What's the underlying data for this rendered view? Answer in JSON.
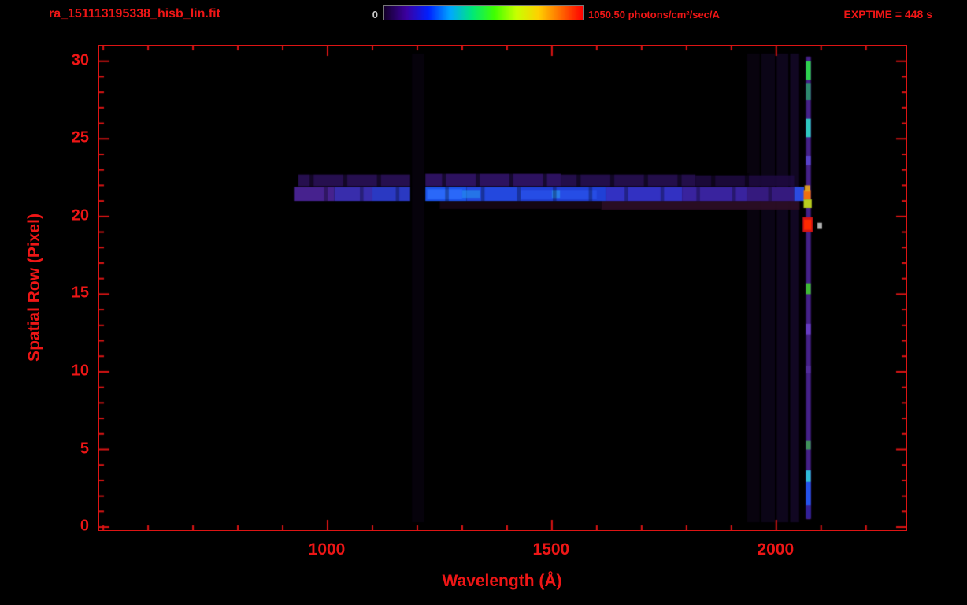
{
  "header": {
    "filename": "ra_151113195338_hisb_lin.fit",
    "exptime": "EXPTIME = 448 s",
    "colorbar": {
      "min_label": "0",
      "max_label": "1050.50 photons/cm²/sec/A",
      "min_value": 0,
      "max_value": 1050.5,
      "units": "photons/cm²/sec/A",
      "gradient": [
        "#14002a",
        "#3c00a0",
        "#0020ff",
        "#00a8ff",
        "#00e878",
        "#40ff00",
        "#c8ff00",
        "#ffd000",
        "#ff6a00",
        "#ff0000"
      ]
    }
  },
  "colors": {
    "background": "#000000",
    "axis_red": "#dd1414",
    "label_red": "#ee1616",
    "colorbar_zero_label": "#c8c8c8"
  },
  "chart_data": {
    "type": "heatmap",
    "title": "ra_151113195338_hisb_lin.fit",
    "xlabel": "Wavelength (Å)",
    "ylabel": "Spatial Row (Pixel)",
    "xlim": [
      491,
      2290
    ],
    "ylim": [
      -0.2,
      31.0
    ],
    "x_ticks": [
      1000,
      1500,
      2000
    ],
    "x_minor_step": 100,
    "y_ticks": [
      0,
      5,
      10,
      15,
      20,
      25,
      30
    ],
    "y_minor_step": 1,
    "grid": false,
    "legend": "none",
    "colorbar_range": [
      0,
      1050.5
    ],
    "features": {
      "source_trace": {
        "rows": [
          21.0,
          22.7
        ],
        "wavelength_range": [
          925,
          2063
        ],
        "absorption_gap_wavelength_range": [
          1184,
          1218
        ],
        "brightest_wavelength_range": [
          1218,
          1600
        ]
      },
      "emission_line_column": {
        "wavelength_center": 2071,
        "rows": [
          0.5,
          30.2
        ],
        "bright_knot_rows": [
          29.5,
          25.7,
          21.3,
          20.8,
          19.5,
          15.3,
          5.3,
          3.2,
          2.0
        ]
      },
      "red_hotspot": {
        "wavelength": 2070,
        "row": 19.5
      }
    },
    "heat_rects": [
      {
        "x": [
          1188,
          1216
        ],
        "row": [
          0.3,
          30.5
        ],
        "color": "#0b0414",
        "alpha": 0.55
      },
      {
        "x": [
          1935,
          1963
        ],
        "row": [
          0.3,
          30.5
        ],
        "color": "#0d0518",
        "alpha": 0.6
      },
      {
        "x": [
          1967,
          1997
        ],
        "row": [
          0.3,
          30.5
        ],
        "color": "#110722",
        "alpha": 0.65
      },
      {
        "x": [
          2001,
          2027
        ],
        "row": [
          0.3,
          30.5
        ],
        "color": "#140828",
        "alpha": 0.7
      },
      {
        "x": [
          2031,
          2051
        ],
        "row": [
          0.3,
          30.5
        ],
        "color": "#170a2e",
        "alpha": 0.75
      },
      {
        "x": [
          1610,
          2052
        ],
        "row": [
          20.45,
          21.0
        ],
        "color": "#2d0e26",
        "alpha": 0.9
      },
      {
        "x": [
          1250,
          1610
        ],
        "row": [
          20.5,
          21.0
        ],
        "color": "#190816",
        "alpha": 0.8
      },
      {
        "x": [
          935,
          1184
        ],
        "row": [
          21.95,
          22.7
        ],
        "color": "#2a1158",
        "alpha": 0.9
      },
      {
        "x": [
          1218,
          1520
        ],
        "row": [
          21.95,
          22.75
        ],
        "color": "#2f1364",
        "alpha": 0.95
      },
      {
        "x": [
          1520,
          1820
        ],
        "row": [
          21.95,
          22.7
        ],
        "color": "#270f52",
        "alpha": 0.9
      },
      {
        "x": [
          1820,
          2040
        ],
        "row": [
          21.95,
          22.65
        ],
        "color": "#1f0b42",
        "alpha": 0.85
      },
      {
        "x": [
          960,
          969
        ],
        "row": [
          21.9,
          22.8
        ],
        "color": "#000000",
        "alpha": 0.5
      },
      {
        "x": [
          1035,
          1044
        ],
        "row": [
          21.9,
          22.8
        ],
        "color": "#000000",
        "alpha": 0.5
      },
      {
        "x": [
          1110,
          1119
        ],
        "row": [
          21.9,
          22.8
        ],
        "color": "#000000",
        "alpha": 0.5
      },
      {
        "x": [
          1255,
          1264
        ],
        "row": [
          21.9,
          22.8
        ],
        "color": "#000000",
        "alpha": 0.5
      },
      {
        "x": [
          1330,
          1339
        ],
        "row": [
          21.9,
          22.8
        ],
        "color": "#000000",
        "alpha": 0.5
      },
      {
        "x": [
          1405,
          1414
        ],
        "row": [
          21.9,
          22.8
        ],
        "color": "#000000",
        "alpha": 0.5
      },
      {
        "x": [
          1480,
          1489
        ],
        "row": [
          21.9,
          22.8
        ],
        "color": "#000000",
        "alpha": 0.5
      },
      {
        "x": [
          1555,
          1564
        ],
        "row": [
          21.9,
          22.8
        ],
        "color": "#000000",
        "alpha": 0.5
      },
      {
        "x": [
          1630,
          1639
        ],
        "row": [
          21.9,
          22.8
        ],
        "color": "#000000",
        "alpha": 0.5
      },
      {
        "x": [
          1705,
          1714
        ],
        "row": [
          21.9,
          22.8
        ],
        "color": "#000000",
        "alpha": 0.5
      },
      {
        "x": [
          1780,
          1789
        ],
        "row": [
          21.9,
          22.8
        ],
        "color": "#000000",
        "alpha": 0.5
      },
      {
        "x": [
          1855,
          1864
        ],
        "row": [
          21.9,
          22.8
        ],
        "color": "#000000",
        "alpha": 0.5
      },
      {
        "x": [
          1930,
          1939
        ],
        "row": [
          21.9,
          22.8
        ],
        "color": "#000000",
        "alpha": 0.5
      },
      {
        "x": [
          925,
          1015
        ],
        "row": [
          21.0,
          21.9
        ],
        "color": "#4a2496",
        "alpha": 0.95
      },
      {
        "x": [
          1015,
          1100
        ],
        "row": [
          21.0,
          21.9
        ],
        "color": "#3b2fb5",
        "alpha": 0.95
      },
      {
        "x": [
          1100,
          1184
        ],
        "row": [
          21.0,
          21.9
        ],
        "color": "#2c3ccc",
        "alpha": 0.95
      },
      {
        "x": [
          1218,
          1310
        ],
        "row": [
          21.0,
          21.9
        ],
        "color": "#1c53ea",
        "alpha": 1
      },
      {
        "x": [
          1310,
          1430
        ],
        "row": [
          21.0,
          21.9
        ],
        "color": "#2348de",
        "alpha": 1
      },
      {
        "x": [
          1430,
          1620
        ],
        "row": [
          21.0,
          21.9
        ],
        "color": "#2040d6",
        "alpha": 1
      },
      {
        "x": [
          1620,
          1790
        ],
        "row": [
          21.0,
          21.9
        ],
        "color": "#3231c2",
        "alpha": 1
      },
      {
        "x": [
          1790,
          1935
        ],
        "row": [
          21.0,
          21.9
        ],
        "color": "#39239e",
        "alpha": 1
      },
      {
        "x": [
          1935,
          2040
        ],
        "row": [
          21.0,
          21.9
        ],
        "color": "#351a7e",
        "alpha": 1
      },
      {
        "x": [
          2040,
          2062
        ],
        "row": [
          21.0,
          21.9
        ],
        "color": "#2b4be0",
        "alpha": 1
      },
      {
        "x": [
          1222,
          1300
        ],
        "row": [
          21.15,
          21.75
        ],
        "color": "#2e6efc",
        "alpha": 0.8
      },
      {
        "x": [
          1300,
          1340
        ],
        "row": [
          21.2,
          21.7
        ],
        "color": "#28a0f0",
        "alpha": 0.5
      },
      {
        "x": [
          1430,
          1600
        ],
        "row": [
          21.15,
          21.7
        ],
        "color": "#2b58f2",
        "alpha": 0.55
      },
      {
        "x": [
          1500,
          1518
        ],
        "row": [
          21.2,
          21.7
        ],
        "color": "#29a9ef",
        "alpha": 0.5
      },
      {
        "x": [
          992,
          1000
        ],
        "row": [
          21.0,
          21.9
        ],
        "color": "#000000",
        "alpha": 0.3
      },
      {
        "x": [
          1072,
          1080
        ],
        "row": [
          21.0,
          21.9
        ],
        "color": "#000000",
        "alpha": 0.3
      },
      {
        "x": [
          1152,
          1160
        ],
        "row": [
          21.0,
          21.9
        ],
        "color": "#000000",
        "alpha": 0.3
      },
      {
        "x": [
          1262,
          1270
        ],
        "row": [
          21.0,
          21.9
        ],
        "color": "#000000",
        "alpha": 0.3
      },
      {
        "x": [
          1342,
          1350
        ],
        "row": [
          21.0,
          21.9
        ],
        "color": "#000000",
        "alpha": 0.3
      },
      {
        "x": [
          1422,
          1430
        ],
        "row": [
          21.0,
          21.9
        ],
        "color": "#000000",
        "alpha": 0.3
      },
      {
        "x": [
          1502,
          1510
        ],
        "row": [
          21.0,
          21.9
        ],
        "color": "#000000",
        "alpha": 0.3
      },
      {
        "x": [
          1582,
          1590
        ],
        "row": [
          21.0,
          21.9
        ],
        "color": "#000000",
        "alpha": 0.3
      },
      {
        "x": [
          1662,
          1670
        ],
        "row": [
          21.0,
          21.9
        ],
        "color": "#000000",
        "alpha": 0.3
      },
      {
        "x": [
          1742,
          1750
        ],
        "row": [
          21.0,
          21.9
        ],
        "color": "#000000",
        "alpha": 0.3
      },
      {
        "x": [
          1822,
          1830
        ],
        "row": [
          21.0,
          21.9
        ],
        "color": "#000000",
        "alpha": 0.3
      },
      {
        "x": [
          1902,
          1910
        ],
        "row": [
          21.0,
          21.9
        ],
        "color": "#000000",
        "alpha": 0.3
      },
      {
        "x": [
          1982,
          1990
        ],
        "row": [
          21.0,
          21.9
        ],
        "color": "#000000",
        "alpha": 0.3
      },
      {
        "x": [
          2065,
          2078
        ],
        "row": [
          0.5,
          30.3
        ],
        "color": "#3a1a70",
        "alpha": 0.85
      },
      {
        "x": [
          2068,
          2075
        ],
        "row": [
          0.5,
          30.3
        ],
        "color": "#50289c",
        "alpha": 0.7
      },
      {
        "x": [
          2066,
          2077
        ],
        "row": [
          28.8,
          30.0
        ],
        "color": "#2ed24e",
        "alpha": 1
      },
      {
        "x": [
          2066,
          2077
        ],
        "row": [
          27.5,
          28.6
        ],
        "color": "#2a9a6a",
        "alpha": 0.85
      },
      {
        "x": [
          2066,
          2077
        ],
        "row": [
          25.1,
          26.3
        ],
        "color": "#2fc9c0",
        "alpha": 1
      },
      {
        "x": [
          2066,
          2077
        ],
        "row": [
          23.3,
          23.9
        ],
        "color": "#5a46cf",
        "alpha": 0.9
      },
      {
        "x": [
          2061,
          2077
        ],
        "row": [
          21.1,
          21.7
        ],
        "color": "#f07010",
        "alpha": 1
      },
      {
        "x": [
          2063,
          2076
        ],
        "row": [
          21.6,
          22.0
        ],
        "color": "#e8a81e",
        "alpha": 0.9
      },
      {
        "x": [
          2061,
          2079
        ],
        "row": [
          20.55,
          21.1
        ],
        "color": "#b9cf1f",
        "alpha": 1
      },
      {
        "x": [
          2059,
          2081
        ],
        "row": [
          19.0,
          19.95
        ],
        "color": "#d51414",
        "alpha": 1
      },
      {
        "x": [
          2062,
          2078
        ],
        "row": [
          19.15,
          19.8
        ],
        "color": "#ff2a00",
        "alpha": 1
      },
      {
        "x": [
          2092,
          2102
        ],
        "row": [
          19.2,
          19.6
        ],
        "color": "#b9b9b9",
        "alpha": 0.95
      },
      {
        "x": [
          2066,
          2077
        ],
        "row": [
          15.0,
          15.7
        ],
        "color": "#3fba35",
        "alpha": 1
      },
      {
        "x": [
          2066,
          2077
        ],
        "row": [
          12.4,
          13.1
        ],
        "color": "#6a3fc9",
        "alpha": 0.9
      },
      {
        "x": [
          2066,
          2077
        ],
        "row": [
          9.9,
          10.4
        ],
        "color": "#55309f",
        "alpha": 0.8
      },
      {
        "x": [
          2066,
          2077
        ],
        "row": [
          5.0,
          5.55
        ],
        "color": "#3f9f55",
        "alpha": 0.9
      },
      {
        "x": [
          2066,
          2077
        ],
        "row": [
          2.9,
          3.65
        ],
        "color": "#2fbcd9",
        "alpha": 1
      },
      {
        "x": [
          2066,
          2077
        ],
        "row": [
          1.4,
          2.9
        ],
        "color": "#2453ea",
        "alpha": 1
      },
      {
        "x": [
          2066,
          2077
        ],
        "row": [
          0.6,
          1.4
        ],
        "color": "#30219a",
        "alpha": 0.9
      }
    ]
  }
}
